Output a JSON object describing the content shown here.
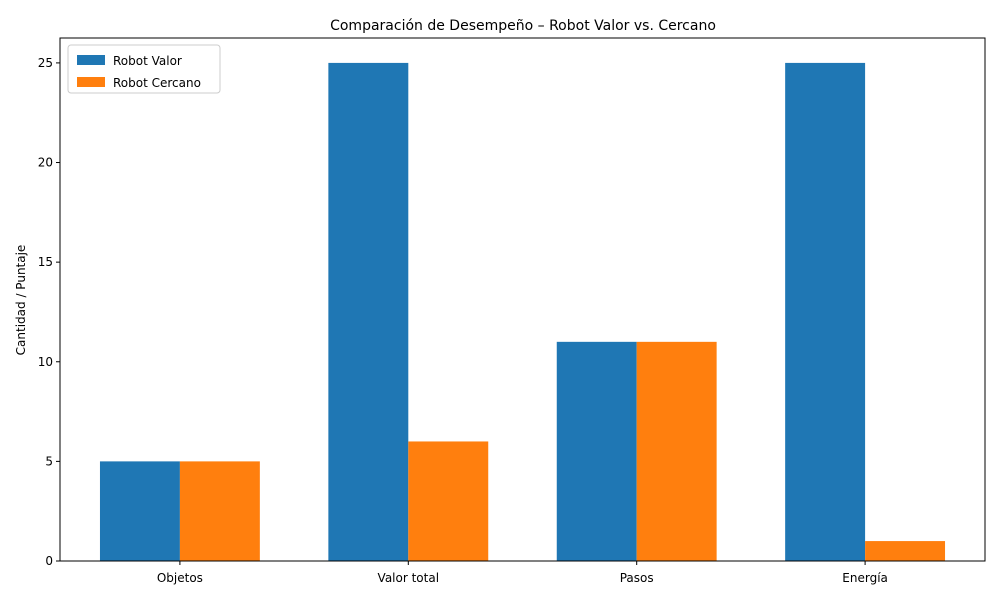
{
  "chart_data": {
    "type": "bar",
    "title": "Comparación de Desempeño – Robot Valor vs. Cercano",
    "xlabel": "",
    "ylabel": "Cantidad / Puntaje",
    "categories": [
      "Objetos",
      "Valor total",
      "Pasos",
      "Energía"
    ],
    "series": [
      {
        "name": "Robot Valor",
        "color": "#1f77b4",
        "values": [
          5,
          25,
          11,
          25
        ]
      },
      {
        "name": "Robot Cercano",
        "color": "#ff7f0e",
        "values": [
          5,
          6,
          11,
          1
        ]
      }
    ],
    "ylim": [
      0,
      26.25
    ],
    "yticks": [
      0,
      5,
      10,
      15,
      20,
      25
    ],
    "grid": false,
    "legend_position": "top-left"
  }
}
